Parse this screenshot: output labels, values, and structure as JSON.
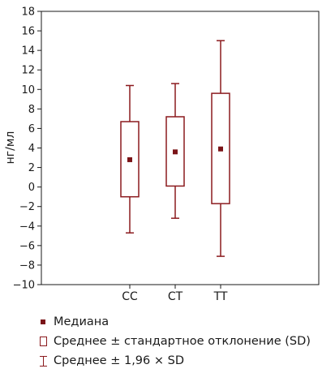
{
  "chart_data": {
    "type": "box",
    "ylabel": "нг/мл",
    "ylim": [
      -10,
      18
    ],
    "yticks": [
      -10,
      -8,
      -6,
      -4,
      -2,
      0,
      2,
      4,
      6,
      8,
      10,
      12,
      14,
      16,
      18
    ],
    "categories": [
      "CC",
      "CT",
      "TT"
    ],
    "median": [
      2.8,
      3.6,
      3.9
    ],
    "box_low": [
      -1.0,
      0.1,
      -1.7
    ],
    "box_high": [
      6.7,
      7.2,
      9.6
    ],
    "whisker_low": [
      -4.7,
      -3.2,
      -7.1
    ],
    "whisker_high": [
      10.4,
      10.6,
      15.0
    ],
    "grid": false,
    "color": "#8b1a1e",
    "median_color": "#7a1418"
  },
  "legend": {
    "median_label": "Медиана",
    "box_label": "Среднее ± стандартное отклонение (SD)",
    "whisker_label": "Среднее ± 1,96 × SD"
  }
}
